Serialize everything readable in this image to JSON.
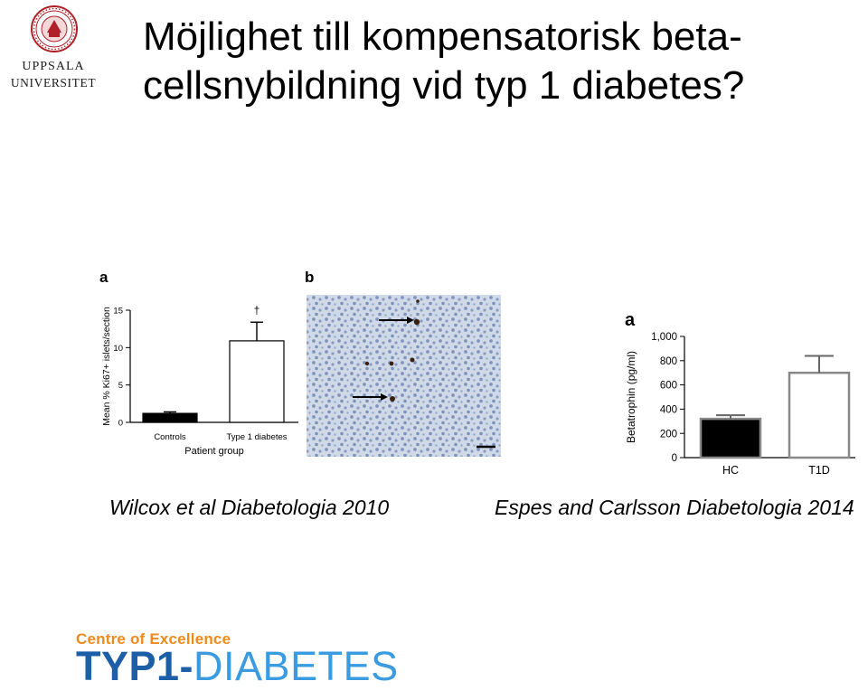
{
  "logo": {
    "line1": "UPPSALA",
    "line2": "UNIVERSITET"
  },
  "title": {
    "line1": "Möjlighet till kompensatorisk beta-",
    "line2": "cellsnybildning vid typ 1 diabetes?"
  },
  "figure_wilcox": {
    "panel_a": "a",
    "panel_b": "b",
    "dagger": "†"
  },
  "figure_espes": {
    "panel_a": "a"
  },
  "chart_data": [
    {
      "type": "bar",
      "categories": [
        "Controls",
        "Type 1 diabetes"
      ],
      "values": [
        1.2,
        10.9
      ],
      "errors": [
        0.2,
        2.5
      ],
      "xlabel": "Patient group",
      "ylabel": "Mean % Ki67+ islets/section",
      "ylim": [
        0,
        15
      ],
      "yticks": [
        0,
        5,
        10,
        15
      ],
      "bar_colors": [
        "#000000",
        "#ffffff"
      ],
      "grid": false
    },
    {
      "type": "bar",
      "categories": [
        "HC",
        "T1D"
      ],
      "values": [
        320,
        700
      ],
      "errors": [
        30,
        140
      ],
      "xlabel": "",
      "ylabel": "Betatrophin (pg/ml)",
      "ylim": [
        0,
        1000
      ],
      "yticks": [
        0,
        200,
        400,
        600,
        800,
        1000
      ],
      "ytick_labels": [
        "0",
        "200",
        "400",
        "600",
        "800",
        "1,000"
      ],
      "bar_colors": [
        "#000000",
        "#ffffff"
      ],
      "grid": false
    }
  ],
  "captions": {
    "left": "Wilcox et al Diabetologia 2010",
    "right": "Espes and Carlsson Diabetologia 2014"
  },
  "footer_logo": {
    "top": "Centre of Excellence",
    "main_part1": "TYP1",
    "main_dash": "-",
    "main_part2": "DIABETES"
  },
  "colors": {
    "logo_red": "#b0202a",
    "coe_orange": "#f08a1c",
    "coe_blue": "#2a7fc8"
  }
}
